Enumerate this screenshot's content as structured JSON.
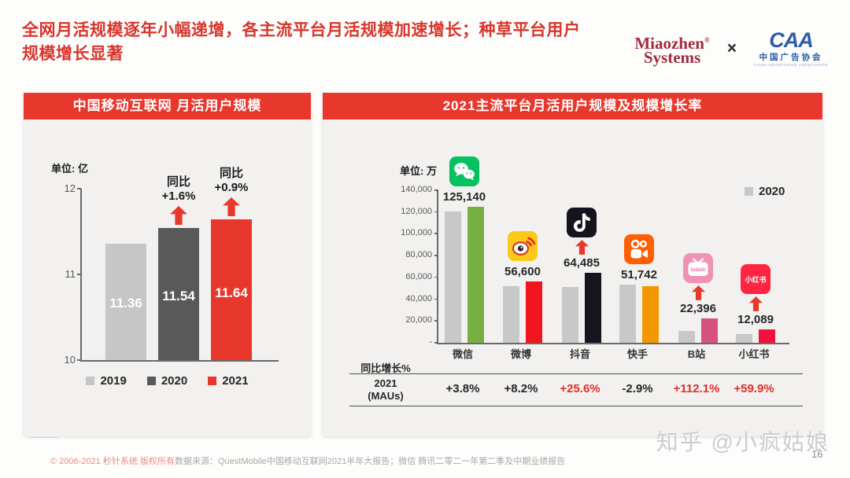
{
  "slide": {
    "title": "全网月活规模逐年小幅递增，各主流平台月活规模加速增长；种草平台用户规模增长显著",
    "page_number": "16",
    "watermark": "知乎 @小疯姑娘"
  },
  "logos": {
    "miaozhen_top": "Miaozhen",
    "miaozhen_reg": "®",
    "miaozhen_bottom": "Systems",
    "separator": "×",
    "caa_acronym": "CAA",
    "caa_cn": "中国广告协会",
    "caa_en": "CHINA ADVERTISING ASSOCIATION"
  },
  "footer": {
    "copyright": "© 2006-2021 秒针系统 版权所有",
    "source": "数据来源：QuestMobile中国移动互联网2021半年大报告；微信 腾讯二零二一年第二季及中期业绩报告"
  },
  "chart_data": [
    {
      "type": "bar",
      "title": "中国移动互联网 月活用户规模",
      "unit_label": "单位: 亿",
      "categories": [
        "2019",
        "2020",
        "2021"
      ],
      "values": [
        11.36,
        11.54,
        11.64
      ],
      "value_labels": [
        "11.36",
        "11.54",
        "11.64"
      ],
      "bar_colors": [
        "#c6c6c6",
        "#595959",
        "#e8382d"
      ],
      "annotations": [
        null,
        {
          "line1": "同比",
          "line2": "+1.6%"
        },
        {
          "line1": "同比",
          "line2": "+0.9%"
        }
      ],
      "ylim": [
        10,
        12
      ],
      "yticks": [
        "12",
        "11",
        "10"
      ],
      "grid": false,
      "legend_position": "bottom",
      "legend": [
        {
          "label": "2019",
          "color": "#c6c6c6"
        },
        {
          "label": "2020",
          "color": "#595959"
        },
        {
          "label": "2021",
          "color": "#e8382d"
        }
      ]
    },
    {
      "type": "grouped-bar",
      "title": "2021主流平台月活用户规模及规模增长率",
      "unit_label": "单位: 万",
      "categories": [
        "微信",
        "微博",
        "抖音",
        "快手",
        "B站",
        "小红书"
      ],
      "icons": [
        "wechat",
        "weibo",
        "douyin",
        "kuaishou",
        "bilibili",
        "xiaohongshu"
      ],
      "series": [
        {
          "name": "2020",
          "estimated_from_bar_heights": true,
          "values": [
            120500,
            52300,
            51300,
            53300,
            10600,
            7600
          ]
        },
        {
          "name": "2021",
          "values": [
            125140,
            56600,
            64485,
            51742,
            22396,
            12089
          ]
        }
      ],
      "value_labels": [
        "125,140",
        "56,600",
        "64,485",
        "51,742",
        "22,396",
        "12,089"
      ],
      "bar_colors_2021": [
        "#76b043",
        "#f0151f",
        "#17151f",
        "#f39800",
        "#d65380",
        "#f2103c"
      ],
      "growth_arrows": [
        false,
        false,
        true,
        false,
        true,
        true
      ],
      "ylim": [
        0,
        140000
      ],
      "yticks": [
        "140,000",
        "120,000",
        "100,000",
        "80,000",
        "60,000",
        "40,000",
        "20,000",
        "-"
      ],
      "grid": false,
      "legend_position": "top-right",
      "legend": [
        {
          "label": "2020",
          "color": "#c8c8c8"
        }
      ],
      "growth_table": {
        "axis_label": "同比增长%",
        "row_label_line1": "2021",
        "row_label_line2": "(MAUs)",
        "values": [
          "+3.8%",
          "+8.2%",
          "+25.6%",
          "-2.9%",
          "+112.1%",
          "+59.9%"
        ],
        "highlighted": [
          false,
          false,
          true,
          false,
          true,
          true
        ]
      }
    }
  ],
  "colors": {
    "accent_red": "#e8382d",
    "title_red": "#d8352c",
    "panel_bg": "#f2f1ef",
    "growth_highlight": "#e0302a",
    "gray_2020_bar": "#c8c8c8"
  }
}
